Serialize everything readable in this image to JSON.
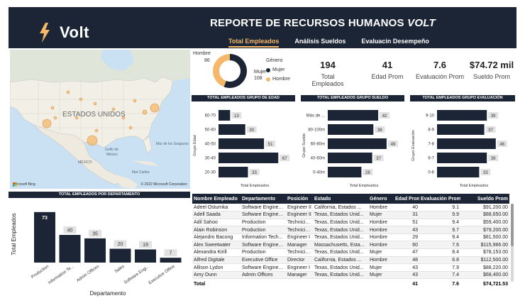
{
  "header": {
    "logo_text": "Volt",
    "title_main": "REPORTE DE RECURSOS HUMANOS",
    "title_brand": "VOLT",
    "tabs": [
      {
        "label": "Total Empleados",
        "active": true
      },
      {
        "label": "Análisis Sueldos",
        "active": false
      },
      {
        "label": "Evaluacin Desempeño",
        "active": false
      }
    ]
  },
  "map": {
    "country_label": "ESTADOS UNIDOS",
    "labels": [
      "Golfo de",
      "México",
      "MÉXICO",
      "Mar Caribe",
      "Mar de los Sargazos"
    ],
    "bing": "Microsoft Bing",
    "copyright": "© 2022 Microsoft Corporation"
  },
  "gender": {
    "legend_title": "Género",
    "legend": [
      {
        "label": "Mujer",
        "color": "#1c2535"
      },
      {
        "label": "Hombre",
        "color": "#f5b86a"
      }
    ],
    "slices": [
      {
        "label": "Hombre",
        "value": 86,
        "color": "#f5b86a"
      },
      {
        "label": "Mujer",
        "value": 108,
        "color": "#1c2535"
      }
    ]
  },
  "kpis": [
    {
      "value": "194",
      "label": "Total Empleados"
    },
    {
      "value": "41",
      "label": "Edad Prom"
    },
    {
      "value": "7.6",
      "label": "Evaluación Prom"
    },
    {
      "value": "$74.72 mil",
      "label": "Sueldo Prom"
    }
  ],
  "chart_data": [
    {
      "type": "bar",
      "orientation": "horizontal",
      "title": "TOTAL EMPLEADOS GRUPO DE EDAD",
      "categories": [
        "60-70",
        "50-60",
        "40-50",
        "30-40",
        "20-30"
      ],
      "values": [
        13,
        30,
        51,
        67,
        33
      ],
      "xlabel": "Total Empleados",
      "ylabel": "Grupo Edad",
      "xlim": [
        0,
        70
      ]
    },
    {
      "type": "bar",
      "orientation": "horizontal",
      "title": "TOTAL EMPLEADOS GRUPO SUELDO",
      "categories": [
        "Más de ...",
        "80-100m",
        "60-80m",
        "40-60m",
        "0-40m"
      ],
      "values": [
        42,
        38,
        49,
        37,
        28
      ],
      "xlabel": "Total Empleados",
      "ylabel": "Grupo Sueldo",
      "xlim": [
        0,
        52
      ]
    },
    {
      "type": "bar",
      "orientation": "horizontal",
      "title": "TOTAL EMPLEADOS GRUPO EVALUACIÓN",
      "categories": [
        "9-10",
        "8-9",
        "7-8",
        "6-7",
        "0-6"
      ],
      "values": [
        39,
        37,
        46,
        39,
        33
      ],
      "xlabel": "Total Empleados",
      "ylabel": "Grupo Evaluación",
      "xlim": [
        0,
        50
      ]
    },
    {
      "type": "bar",
      "title": "TOTAL EMPLEADOS POR DEPARTAMENTO",
      "categories": [
        "Production",
        "Information Te...",
        "Admin Offices",
        "Sales",
        "Software Engi...",
        "Executive Office"
      ],
      "values": [
        73,
        40,
        35,
        20,
        19,
        7
      ],
      "xlabel": "Departamento",
      "ylabel": "Total Empleados",
      "ylim": [
        0,
        80
      ]
    }
  ],
  "table": {
    "columns": [
      "Nombre Empleado",
      "Departamento",
      "Posición",
      "Estado",
      "Género",
      "Edad Prom",
      "Evaluación Prom",
      "Sueldo Prom"
    ],
    "rows": [
      [
        "Adeel Osturnka",
        "Software Enginee...",
        "Engineer II",
        "California, Estados ...",
        "Hombre",
        "40",
        "9.1",
        "$91,200.00"
      ],
      [
        "Adell Saada",
        "Software Enginee...",
        "Engineer II",
        "Texas, Estados Unid...",
        "Mujer",
        "31",
        "9.9",
        "$88,650.00"
      ],
      [
        "Adil Sahoo",
        "Production",
        "Technicia...",
        "Texas, Estados Unid...",
        "Hombre",
        "51",
        "9.4",
        "$59,400.00"
      ],
      [
        "Alain Robinson",
        "Production",
        "Technicia...",
        "Texas, Estados Unid...",
        "Hombre",
        "43",
        "9.7",
        "$79,200.00"
      ],
      [
        "Alejandro Bacong",
        "Information Tech...",
        "Engineer I",
        "Texas, Estados Unid...",
        "Hombre",
        "29",
        "9.4",
        "$81,500.00"
      ],
      [
        "Alex Sweetwater",
        "Software Enginee...",
        "Manager",
        "Massachusetts, Esta...",
        "Hombre",
        "60",
        "7.6",
        "$115,966.00"
      ],
      [
        "Alexandra Kirill",
        "Production",
        "Technicia...",
        "Texas, Estados Unid...",
        "Mujer",
        "47",
        "8.4",
        "$78,153.00"
      ],
      [
        "Alfred Digitale",
        "Executive Office",
        "Director",
        "California, Estados ...",
        "Hombre",
        "48",
        "6.8",
        "$112,500.00"
      ],
      [
        "Allison Lydon",
        "Software Enginee...",
        "Engineer I",
        "Texas, Estados Unid...",
        "Mujer",
        "43",
        "7.9",
        "$88,220.00"
      ],
      [
        "Amy Dunn",
        "Admin Offices",
        "Manager",
        "Texas, Estados Unid...",
        "Mujer",
        "43",
        "7.4",
        "$68,400.00"
      ]
    ],
    "total": {
      "label": "Total",
      "edad": "41",
      "evaluacion": "7.6",
      "sueldo": "$74,721.53"
    }
  }
}
